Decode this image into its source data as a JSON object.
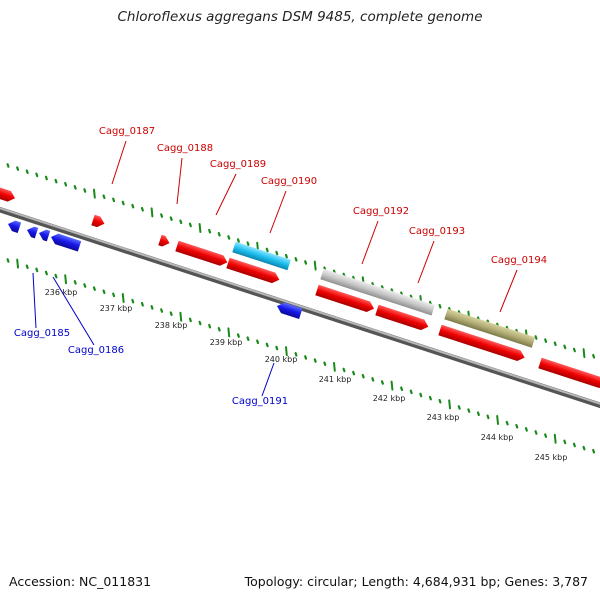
{
  "title": "Chloroflexus aggregans DSM 9485, complete genome",
  "footer": {
    "accession": "Accession: NC_011831",
    "summary": "Topology: circular; Length: 4,684,931 bp; Genes: 3,787"
  },
  "colors": {
    "forward_gene": "#ff0000",
    "reverse_gene": "#1010ee",
    "forward_label": "#cc0000",
    "reverse_label": "#0000cc",
    "tick": "#1a8a1a",
    "backbone": "#808080",
    "highlight_cyan": "#22c4f0",
    "highlight_grey": "#c8c8c8",
    "highlight_olive": "#b5b07a"
  },
  "scale_labels": [
    "236 kbp",
    "237 kbp",
    "238 kbp",
    "239 kbp",
    "240 kbp",
    "241 kbp",
    "242 kbp",
    "243 kbp",
    "244 kbp",
    "245 kbp"
  ],
  "forward_labels": [
    "Cagg_0187",
    "Cagg_0188",
    "Cagg_0189",
    "Cagg_0190",
    "Cagg_0192",
    "Cagg_0193",
    "Cagg_0194"
  ],
  "reverse_labels": [
    "Cagg_0185",
    "Cagg_0186",
    "Cagg_0191"
  ]
}
